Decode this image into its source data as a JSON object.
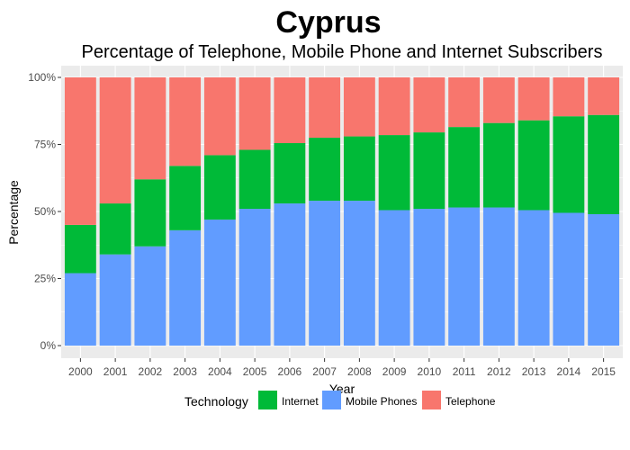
{
  "chart_data": {
    "type": "bar",
    "stacked": true,
    "normalized": true,
    "title": "Cyprus",
    "subtitle": "Percentage of Telephone, Mobile Phone and Internet Subscribers",
    "xlabel": "Year",
    "ylabel": "Percentage",
    "ylim": [
      0,
      1
    ],
    "y_ticks": [
      "0%",
      "25%",
      "50%",
      "75%",
      "100%"
    ],
    "y_tick_values": [
      0,
      0.25,
      0.5,
      0.75,
      1
    ],
    "grid": true,
    "categories": [
      "2000",
      "2001",
      "2002",
      "2003",
      "2004",
      "2005",
      "2006",
      "2007",
      "2008",
      "2009",
      "2010",
      "2011",
      "2012",
      "2013",
      "2014",
      "2015"
    ],
    "series": [
      {
        "name": "Mobile Phones",
        "color": "#619CFF",
        "values": [
          0.27,
          0.34,
          0.37,
          0.43,
          0.47,
          0.51,
          0.53,
          0.54,
          0.54,
          0.505,
          0.51,
          0.515,
          0.515,
          0.505,
          0.495,
          0.49
        ]
      },
      {
        "name": "Internet",
        "color": "#00BA38",
        "values": [
          0.18,
          0.19,
          0.25,
          0.24,
          0.24,
          0.22,
          0.225,
          0.235,
          0.24,
          0.28,
          0.285,
          0.3,
          0.315,
          0.335,
          0.36,
          0.37
        ]
      },
      {
        "name": "Telephone",
        "color": "#F8766D",
        "values": [
          0.55,
          0.47,
          0.38,
          0.33,
          0.29,
          0.27,
          0.245,
          0.225,
          0.22,
          0.215,
          0.205,
          0.185,
          0.17,
          0.16,
          0.145,
          0.14
        ]
      }
    ],
    "legend": {
      "title": "Technology",
      "position": "bottom",
      "items": [
        {
          "label": "Internet",
          "color": "#00BA38"
        },
        {
          "label": "Mobile Phones",
          "color": "#619CFF"
        },
        {
          "label": "Telephone",
          "color": "#F8766D"
        }
      ]
    }
  }
}
